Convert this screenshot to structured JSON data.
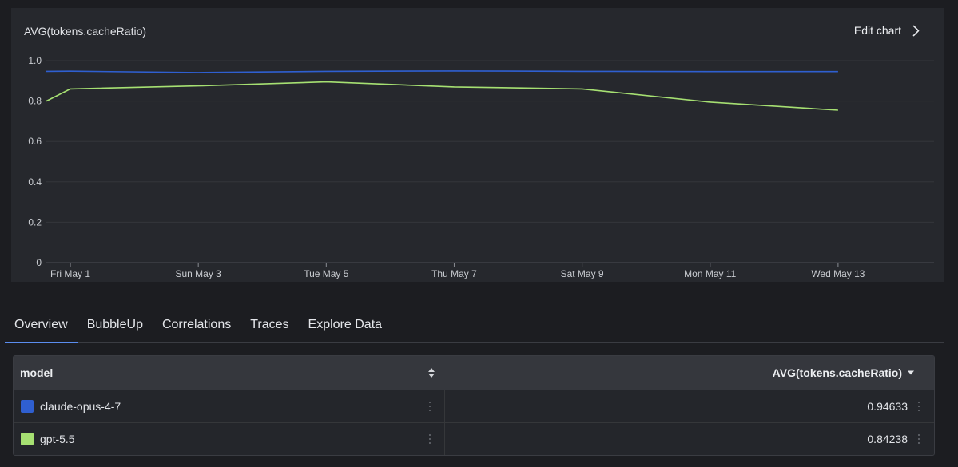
{
  "chart": {
    "title": "AVG(tokens.cacheRatio)",
    "edit_label": "Edit chart"
  },
  "chart_data": {
    "type": "line",
    "title": "AVG(tokens.cacheRatio)",
    "xlabel": "",
    "ylabel": "",
    "ylim": [
      0,
      1.0
    ],
    "y_ticks": [
      0,
      0.2,
      0.4,
      0.6,
      0.8,
      1.0
    ],
    "y_tick_labels": [
      "0",
      "0.2",
      "0.4",
      "0.6",
      "0.8",
      "1.0"
    ],
    "x_tick_labels": [
      "Fri May 1",
      "Sun May 3",
      "Tue May 5",
      "Thu May 7",
      "Sat May 9",
      "Mon May 11",
      "Wed May 13"
    ],
    "x_tick_dates": [
      "2026-05-01",
      "2026-05-03",
      "2026-05-05",
      "2026-05-07",
      "2026-05-09",
      "2026-05-11",
      "2026-05-13"
    ],
    "xlim": [
      "2026-04-30T15:00",
      "2026-05-14T12:00"
    ],
    "grid": true,
    "series": [
      {
        "name": "claude-opus-4-7",
        "color": "#2f5fd0",
        "x": [
          "2026-04-30T15:00",
          "2026-05-01",
          "2026-05-03",
          "2026-05-05",
          "2026-05-07",
          "2026-05-09",
          "2026-05-11",
          "2026-05-13"
        ],
        "y": [
          0.947,
          0.948,
          0.941,
          0.947,
          0.949,
          0.947,
          0.946,
          0.946
        ]
      },
      {
        "name": "gpt-5.5",
        "color": "#a6e072",
        "x": [
          "2026-04-30T15:00",
          "2026-05-01",
          "2026-05-03",
          "2026-05-05",
          "2026-05-07",
          "2026-05-09",
          "2026-05-11",
          "2026-05-13"
        ],
        "y": [
          0.8,
          0.86,
          0.875,
          0.895,
          0.87,
          0.86,
          0.795,
          0.755
        ]
      }
    ]
  },
  "tabs": [
    "Overview",
    "BubbleUp",
    "Correlations",
    "Traces",
    "Explore Data"
  ],
  "table": {
    "col_model": "model",
    "col_value": "AVG(tokens.cacheRatio)",
    "rows": [
      {
        "model": "claude-opus-4-7",
        "value": "0.94633",
        "color": "#2f5fd0"
      },
      {
        "model": "gpt-5.5",
        "value": "0.84238",
        "color": "#a6e072"
      }
    ]
  },
  "icons": {
    "edit_chart": "chevron-right-icon",
    "sort": "sort-updown-icon",
    "sort_desc": "caret-down-icon",
    "row_menu": "kebab-vertical-icon"
  }
}
